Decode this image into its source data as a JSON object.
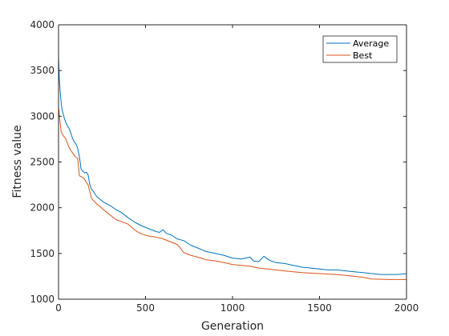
{
  "chart_data": {
    "type": "line",
    "title": "",
    "xlabel": "Generation",
    "ylabel": "Fitness value",
    "xlim": [
      0,
      2000
    ],
    "ylim": [
      1000,
      4000
    ],
    "xticks": [
      0,
      500,
      1000,
      1500,
      2000
    ],
    "xtick_labels": [
      "0",
      "500",
      "1000",
      "1500",
      "2000"
    ],
    "yticks": [
      1000,
      1500,
      2000,
      2500,
      3000,
      3500,
      4000
    ],
    "ytick_labels": [
      "1000",
      "1500",
      "2000",
      "2500",
      "3000",
      "3500",
      "4000"
    ],
    "grid": false,
    "legend_position": "top-right",
    "series": [
      {
        "name": "Average",
        "color": "#0072BD",
        "x": [
          0,
          5,
          10,
          15,
          20,
          30,
          40,
          50,
          60,
          70,
          80,
          90,
          100,
          110,
          120,
          130,
          140,
          150,
          160,
          170,
          180,
          190,
          200,
          210,
          220,
          240,
          260,
          280,
          300,
          330,
          360,
          400,
          440,
          480,
          520,
          560,
          580,
          600,
          620,
          650,
          680,
          720,
          760,
          800,
          850,
          900,
          950,
          1000,
          1050,
          1100,
          1120,
          1150,
          1180,
          1200,
          1220,
          1250,
          1300,
          1350,
          1400,
          1450,
          1500,
          1550,
          1600,
          1650,
          1700,
          1750,
          1800,
          1850,
          1900,
          1950,
          2000
        ],
        "y": [
          3650,
          3400,
          3250,
          3150,
          3080,
          3000,
          2940,
          2900,
          2870,
          2820,
          2760,
          2720,
          2700,
          2650,
          2560,
          2420,
          2400,
          2380,
          2390,
          2360,
          2250,
          2200,
          2180,
          2150,
          2120,
          2090,
          2060,
          2040,
          2020,
          1980,
          1950,
          1890,
          1840,
          1800,
          1770,
          1740,
          1730,
          1760,
          1720,
          1700,
          1660,
          1640,
          1590,
          1560,
          1520,
          1500,
          1480,
          1450,
          1440,
          1460,
          1420,
          1410,
          1470,
          1440,
          1420,
          1400,
          1390,
          1370,
          1350,
          1340,
          1330,
          1320,
          1320,
          1310,
          1300,
          1290,
          1280,
          1270,
          1270,
          1270,
          1280
        ]
      },
      {
        "name": "Best",
        "color": "#D95319",
        "x": [
          0,
          8,
          15,
          30,
          40,
          60,
          80,
          95,
          110,
          120,
          140,
          150,
          160,
          170,
          190,
          200,
          220,
          240,
          270,
          290,
          310,
          330,
          360,
          400,
          430,
          450,
          480,
          520,
          560,
          600,
          640,
          680,
          700,
          720,
          760,
          800,
          850,
          900,
          950,
          1000,
          1100,
          1150,
          1200,
          1300,
          1350,
          1400,
          1500,
          1600,
          1650,
          1700,
          1750,
          1800,
          1900,
          2000
        ],
        "y": [
          3100,
          2950,
          2830,
          2780,
          2760,
          2660,
          2600,
          2560,
          2540,
          2350,
          2330,
          2310,
          2280,
          2250,
          2100,
          2080,
          2040,
          2010,
          1960,
          1930,
          1900,
          1870,
          1850,
          1820,
          1770,
          1740,
          1710,
          1690,
          1680,
          1660,
          1630,
          1600,
          1560,
          1510,
          1480,
          1460,
          1430,
          1420,
          1400,
          1380,
          1360,
          1340,
          1330,
          1310,
          1300,
          1290,
          1280,
          1270,
          1260,
          1250,
          1240,
          1220,
          1215,
          1215
        ]
      }
    ]
  }
}
